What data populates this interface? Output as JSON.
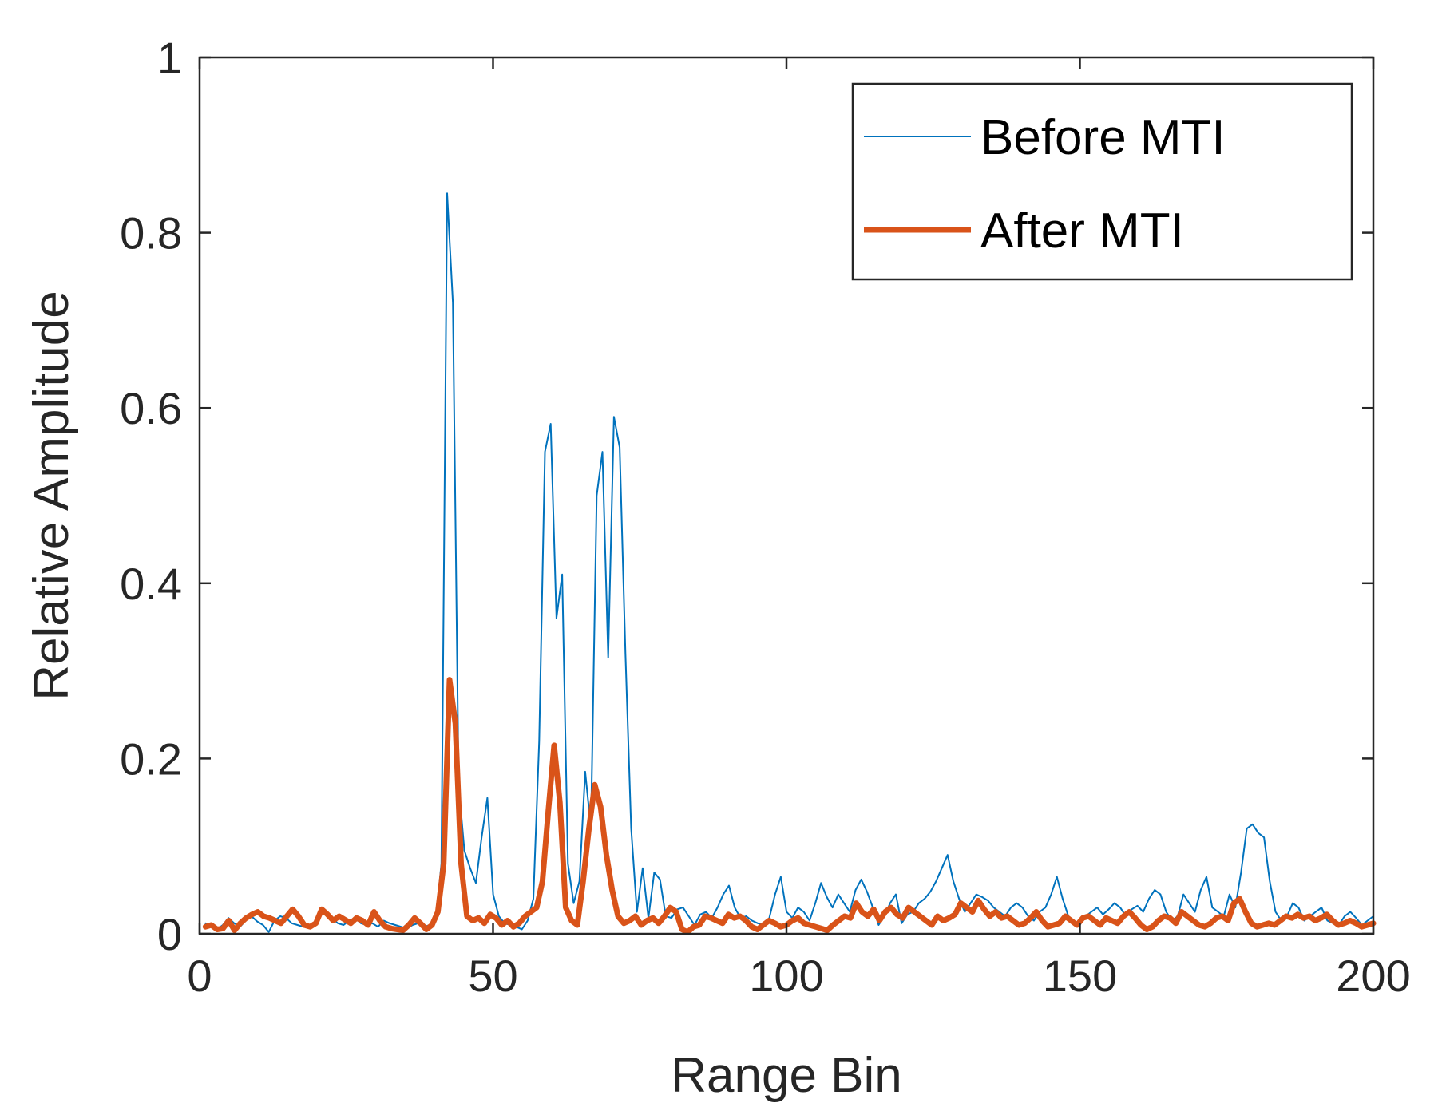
{
  "chart_data": {
    "type": "line",
    "title": "",
    "xlabel": "Range Bin",
    "ylabel": "Relative Amplitude",
    "xlim": [
      0,
      200
    ],
    "ylim": [
      0,
      1
    ],
    "xticks": [
      0,
      50,
      100,
      150,
      200
    ],
    "yticks": [
      0,
      0.2,
      0.4,
      0.6,
      0.8,
      1
    ],
    "xtick_labels": [
      "0",
      "50",
      "100",
      "150",
      "200"
    ],
    "ytick_labels": [
      "0",
      "0.2",
      "0.4",
      "0.6",
      "0.8",
      "1"
    ],
    "grid": false,
    "legend_position": "top-right",
    "series": [
      {
        "name": "Before MTI",
        "color": "#0072BD",
        "values": [
          0.012,
          0.008,
          0.005,
          0.01,
          0.018,
          0.012,
          0.008,
          0.015,
          0.02,
          0.014,
          0.01,
          0.002,
          0.015,
          0.02,
          0.018,
          0.012,
          0.01,
          0.008,
          0.007,
          0.012,
          0.022,
          0.025,
          0.018,
          0.012,
          0.01,
          0.015,
          0.018,
          0.012,
          0.01,
          0.012,
          0.008,
          0.015,
          0.012,
          0.01,
          0.008,
          0.006,
          0.01,
          0.012,
          0.008,
          0.01,
          0.015,
          0.08,
          0.845,
          0.72,
          0.17,
          0.095,
          0.075,
          0.058,
          0.11,
          0.155,
          0.045,
          0.02,
          0.012,
          0.01,
          0.008,
          0.005,
          0.015,
          0.04,
          0.22,
          0.55,
          0.582,
          0.36,
          0.41,
          0.08,
          0.035,
          0.06,
          0.185,
          0.12,
          0.5,
          0.55,
          0.315,
          0.59,
          0.555,
          0.32,
          0.12,
          0.025,
          0.075,
          0.018,
          0.07,
          0.062,
          0.02,
          0.018,
          0.028,
          0.03,
          0.02,
          0.01,
          0.022,
          0.025,
          0.018,
          0.03,
          0.045,
          0.055,
          0.03,
          0.018,
          0.02,
          0.015,
          0.012,
          0.01,
          0.018,
          0.045,
          0.065,
          0.025,
          0.018,
          0.03,
          0.025,
          0.015,
          0.035,
          0.058,
          0.042,
          0.03,
          0.045,
          0.035,
          0.025,
          0.05,
          0.062,
          0.048,
          0.03,
          0.01,
          0.02,
          0.035,
          0.045,
          0.012,
          0.022,
          0.025,
          0.035,
          0.04,
          0.048,
          0.06,
          0.075,
          0.09,
          0.06,
          0.04,
          0.025,
          0.035,
          0.045,
          0.042,
          0.038,
          0.03,
          0.025,
          0.02,
          0.03,
          0.035,
          0.03,
          0.02,
          0.015,
          0.025,
          0.03,
          0.045,
          0.065,
          0.04,
          0.02,
          0.012,
          0.01,
          0.02,
          0.025,
          0.03,
          0.022,
          0.028,
          0.035,
          0.03,
          0.02,
          0.028,
          0.032,
          0.025,
          0.04,
          0.05,
          0.045,
          0.025,
          0.015,
          0.02,
          0.045,
          0.035,
          0.025,
          0.05,
          0.065,
          0.03,
          0.025,
          0.02,
          0.045,
          0.03,
          0.07,
          0.12,
          0.125,
          0.115,
          0.11,
          0.06,
          0.025,
          0.015,
          0.02,
          0.035,
          0.03,
          0.015,
          0.02,
          0.025,
          0.03,
          0.015,
          0.012,
          0.01,
          0.02,
          0.025,
          0.018,
          0.01,
          0.015,
          0.02
        ],
        "line_width": 2
      },
      {
        "name": "After MTI",
        "color": "#D95319",
        "values": [
          0.008,
          0.01,
          0.005,
          0.006,
          0.015,
          0.004,
          0.012,
          0.018,
          0.022,
          0.025,
          0.02,
          0.018,
          0.015,
          0.012,
          0.02,
          0.028,
          0.02,
          0.01,
          0.008,
          0.012,
          0.028,
          0.022,
          0.015,
          0.02,
          0.016,
          0.012,
          0.018,
          0.015,
          0.01,
          0.025,
          0.015,
          0.008,
          0.006,
          0.005,
          0.004,
          0.01,
          0.018,
          0.012,
          0.005,
          0.01,
          0.025,
          0.08,
          0.29,
          0.24,
          0.08,
          0.02,
          0.015,
          0.018,
          0.012,
          0.022,
          0.018,
          0.01,
          0.015,
          0.008,
          0.012,
          0.02,
          0.025,
          0.03,
          0.06,
          0.14,
          0.215,
          0.15,
          0.03,
          0.015,
          0.01,
          0.06,
          0.12,
          0.17,
          0.145,
          0.09,
          0.05,
          0.02,
          0.012,
          0.015,
          0.02,
          0.01,
          0.015,
          0.018,
          0.012,
          0.02,
          0.03,
          0.025,
          0.005,
          0.002,
          0.008,
          0.01,
          0.02,
          0.018,
          0.015,
          0.012,
          0.022,
          0.018,
          0.02,
          0.015,
          0.008,
          0.005,
          0.01,
          0.015,
          0.012,
          0.008,
          0.01,
          0.015,
          0.018,
          0.012,
          0.01,
          0.008,
          0.006,
          0.004,
          0.01,
          0.015,
          0.02,
          0.018,
          0.035,
          0.025,
          0.02,
          0.028,
          0.015,
          0.025,
          0.03,
          0.022,
          0.018,
          0.03,
          0.025,
          0.02,
          0.015,
          0.01,
          0.02,
          0.015,
          0.018,
          0.022,
          0.035,
          0.03,
          0.025,
          0.038,
          0.028,
          0.02,
          0.025,
          0.018,
          0.02,
          0.015,
          0.01,
          0.012,
          0.018,
          0.025,
          0.015,
          0.008,
          0.01,
          0.012,
          0.02,
          0.015,
          0.01,
          0.018,
          0.02,
          0.015,
          0.01,
          0.018,
          0.015,
          0.012,
          0.02,
          0.025,
          0.018,
          0.01,
          0.005,
          0.008,
          0.015,
          0.02,
          0.018,
          0.012,
          0.025,
          0.02,
          0.015,
          0.01,
          0.008,
          0.012,
          0.018,
          0.02,
          0.015,
          0.035,
          0.04,
          0.025,
          0.012,
          0.008,
          0.01,
          0.012,
          0.01,
          0.015,
          0.02,
          0.018,
          0.022,
          0.018,
          0.02,
          0.015,
          0.018,
          0.022,
          0.015,
          0.01,
          0.012,
          0.015,
          0.012,
          0.008,
          0.01,
          0.012
        ],
        "line_width": 7
      }
    ]
  }
}
